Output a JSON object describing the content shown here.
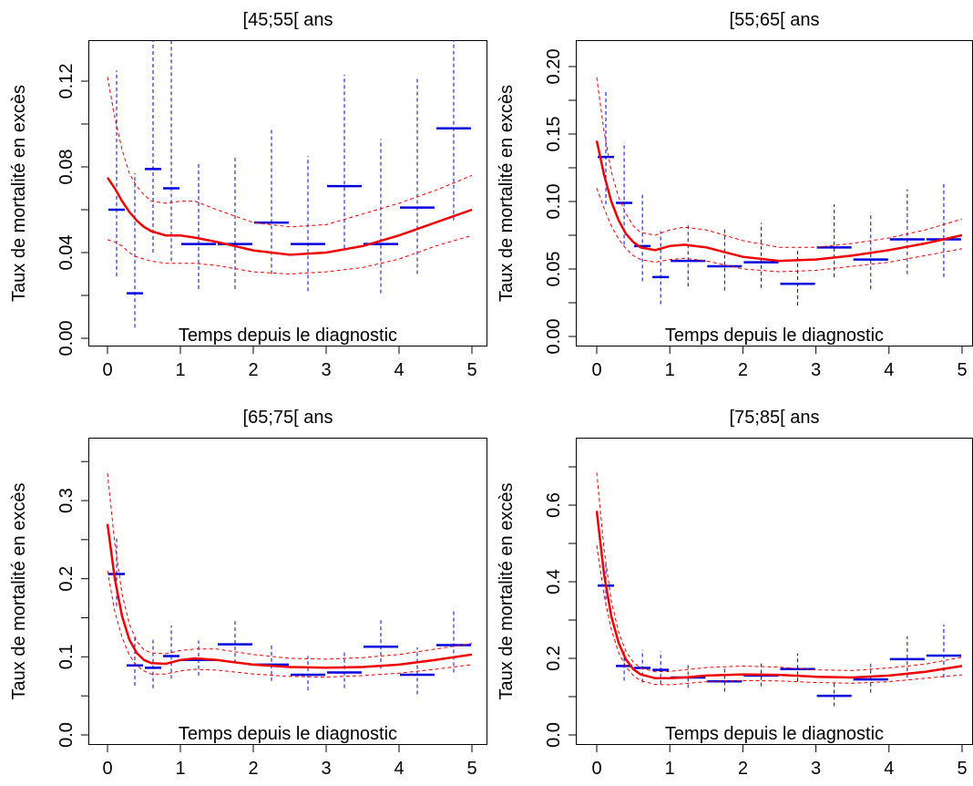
{
  "chart_data": [
    {
      "type": "line",
      "title": "[45;55[ ans",
      "xlabel": "Temps depuis le diagnostic",
      "ylabel": "Taux de mortalité en excès",
      "xlim": [
        0,
        5
      ],
      "ylim": [
        0,
        0.14
      ],
      "xticks": [
        "0",
        "1",
        "2",
        "3",
        "4",
        "5"
      ],
      "yticks": [
        "0.00",
        "0.04",
        "0.08",
        "0.12"
      ],
      "curve": {
        "x": [
          0,
          0.1,
          0.2,
          0.3,
          0.4,
          0.5,
          0.6,
          0.8,
          1.0,
          1.2,
          1.5,
          2.0,
          2.5,
          3.0,
          3.5,
          4.0,
          4.5,
          5.0
        ],
        "y": [
          0.075,
          0.07,
          0.064,
          0.059,
          0.055,
          0.052,
          0.05,
          0.048,
          0.048,
          0.047,
          0.045,
          0.041,
          0.039,
          0.04,
          0.043,
          0.048,
          0.054,
          0.06
        ],
        "lo": [
          0.046,
          0.045,
          0.043,
          0.04,
          0.038,
          0.037,
          0.036,
          0.035,
          0.035,
          0.035,
          0.034,
          0.031,
          0.03,
          0.031,
          0.033,
          0.037,
          0.043,
          0.048
        ],
        "hi": [
          0.122,
          0.103,
          0.088,
          0.077,
          0.071,
          0.067,
          0.064,
          0.063,
          0.064,
          0.064,
          0.06,
          0.054,
          0.052,
          0.053,
          0.058,
          0.063,
          0.069,
          0.076
        ]
      },
      "bins": [
        {
          "x0": 0.0,
          "x1": 0.25,
          "y": 0.06,
          "lo": 0.029,
          "hi": 0.125
        },
        {
          "x0": 0.25,
          "x1": 0.5,
          "y": 0.021,
          "lo": 0.005,
          "hi": 0.077
        },
        {
          "x0": 0.5,
          "x1": 0.75,
          "y": 0.079,
          "lo": 0.04,
          "hi": 0.14
        },
        {
          "x0": 0.75,
          "x1": 1.0,
          "y": 0.07,
          "lo": 0.036,
          "hi": 0.14
        },
        {
          "x0": 1.0,
          "x1": 1.5,
          "y": 0.044,
          "lo": 0.023,
          "hi": 0.082
        },
        {
          "x0": 1.5,
          "x1": 2.0,
          "y": 0.044,
          "lo": 0.023,
          "hi": 0.085
        },
        {
          "x0": 2.0,
          "x1": 2.5,
          "y": 0.054,
          "lo": 0.03,
          "hi": 0.098
        },
        {
          "x0": 2.5,
          "x1": 3.0,
          "y": 0.044,
          "lo": 0.022,
          "hi": 0.085
        },
        {
          "x0": 3.0,
          "x1": 3.5,
          "y": 0.071,
          "lo": 0.042,
          "hi": 0.123
        },
        {
          "x0": 3.5,
          "x1": 4.0,
          "y": 0.044,
          "lo": 0.021,
          "hi": 0.093
        },
        {
          "x0": 4.0,
          "x1": 4.5,
          "y": 0.061,
          "lo": 0.03,
          "hi": 0.122
        },
        {
          "x0": 4.5,
          "x1": 5.0,
          "y": 0.098,
          "lo": 0.055,
          "hi": 0.14
        }
      ]
    },
    {
      "type": "line",
      "title": "[55;65[ ans",
      "xlabel": "Temps depuis le diagnostic",
      "ylabel": "Taux de mortalité en excès",
      "xlim": [
        0,
        5
      ],
      "ylim": [
        0,
        0.22
      ],
      "xticks": [
        "0",
        "1",
        "2",
        "3",
        "4",
        "5"
      ],
      "yticks": [
        "0.00",
        "0.05",
        "0.10",
        "0.15",
        "0.20"
      ],
      "curve": {
        "x": [
          0,
          0.1,
          0.2,
          0.3,
          0.4,
          0.5,
          0.6,
          0.8,
          1.0,
          1.2,
          1.5,
          2.0,
          2.5,
          3.0,
          3.5,
          4.0,
          4.5,
          5.0
        ],
        "y": [
          0.145,
          0.12,
          0.1,
          0.086,
          0.076,
          0.07,
          0.066,
          0.064,
          0.067,
          0.068,
          0.066,
          0.059,
          0.056,
          0.057,
          0.06,
          0.064,
          0.069,
          0.075
        ],
        "lo": [
          0.11,
          0.095,
          0.082,
          0.072,
          0.065,
          0.06,
          0.057,
          0.055,
          0.057,
          0.058,
          0.056,
          0.05,
          0.048,
          0.049,
          0.052,
          0.055,
          0.06,
          0.065
        ],
        "hi": [
          0.192,
          0.152,
          0.122,
          0.103,
          0.091,
          0.082,
          0.077,
          0.075,
          0.079,
          0.081,
          0.079,
          0.071,
          0.066,
          0.066,
          0.069,
          0.073,
          0.079,
          0.087
        ]
      },
      "bins": [
        {
          "x0": 0.0,
          "x1": 0.25,
          "y": 0.133,
          "lo": 0.098,
          "hi": 0.182
        },
        {
          "x0": 0.25,
          "x1": 0.5,
          "y": 0.099,
          "lo": 0.068,
          "hi": 0.144
        },
        {
          "x0": 0.5,
          "x1": 0.75,
          "y": 0.067,
          "lo": 0.041,
          "hi": 0.105
        },
        {
          "x0": 0.75,
          "x1": 1.0,
          "y": 0.044,
          "lo": 0.024,
          "hi": 0.078
        },
        {
          "x0": 1.0,
          "x1": 1.5,
          "y": 0.056,
          "lo": 0.037,
          "hi": 0.083
        },
        {
          "x0": 1.5,
          "x1": 2.0,
          "y": 0.052,
          "lo": 0.034,
          "hi": 0.08
        },
        {
          "x0": 2.0,
          "x1": 2.5,
          "y": 0.055,
          "lo": 0.036,
          "hi": 0.084
        },
        {
          "x0": 2.5,
          "x1": 3.0,
          "y": 0.039,
          "lo": 0.023,
          "hi": 0.065
        },
        {
          "x0": 3.0,
          "x1": 3.5,
          "y": 0.066,
          "lo": 0.044,
          "hi": 0.098
        },
        {
          "x0": 3.5,
          "x1": 4.0,
          "y": 0.057,
          "lo": 0.035,
          "hi": 0.092
        },
        {
          "x0": 4.0,
          "x1": 4.5,
          "y": 0.072,
          "lo": 0.046,
          "hi": 0.109
        },
        {
          "x0": 4.5,
          "x1": 5.0,
          "y": 0.072,
          "lo": 0.044,
          "hi": 0.114
        }
      ]
    },
    {
      "type": "line",
      "title": "[65;75[ ans",
      "xlabel": "Temps depuis le diagnostic",
      "ylabel": "Taux de mortalité en excès",
      "xlim": [
        0,
        5
      ],
      "ylim": [
        0,
        0.35
      ],
      "xticks": [
        "0",
        "1",
        "2",
        "3",
        "4",
        "5"
      ],
      "yticks": [
        "0.0",
        "0.1",
        "0.2",
        "0.3"
      ],
      "curve": {
        "x": [
          0,
          0.1,
          0.2,
          0.3,
          0.4,
          0.5,
          0.6,
          0.8,
          1.0,
          1.2,
          1.5,
          2.0,
          2.5,
          3.0,
          3.5,
          4.0,
          4.5,
          5.0
        ],
        "y": [
          0.27,
          0.2,
          0.152,
          0.122,
          0.105,
          0.096,
          0.092,
          0.091,
          0.096,
          0.098,
          0.096,
          0.09,
          0.087,
          0.086,
          0.087,
          0.09,
          0.096,
          0.103
        ],
        "lo": [
          0.21,
          0.158,
          0.125,
          0.102,
          0.089,
          0.082,
          0.078,
          0.078,
          0.082,
          0.084,
          0.083,
          0.078,
          0.075,
          0.074,
          0.076,
          0.079,
          0.084,
          0.09
        ],
        "hi": [
          0.335,
          0.245,
          0.18,
          0.142,
          0.12,
          0.109,
          0.105,
          0.104,
          0.108,
          0.11,
          0.11,
          0.103,
          0.098,
          0.097,
          0.099,
          0.103,
          0.11,
          0.117
        ]
      },
      "bins": [
        {
          "x0": 0.0,
          "x1": 0.25,
          "y": 0.206,
          "lo": 0.165,
          "hi": 0.255
        },
        {
          "x0": 0.25,
          "x1": 0.5,
          "y": 0.089,
          "lo": 0.063,
          "hi": 0.125
        },
        {
          "x0": 0.5,
          "x1": 0.75,
          "y": 0.086,
          "lo": 0.06,
          "hi": 0.122
        },
        {
          "x0": 0.75,
          "x1": 1.0,
          "y": 0.101,
          "lo": 0.072,
          "hi": 0.14
        },
        {
          "x0": 1.0,
          "x1": 1.5,
          "y": 0.096,
          "lo": 0.076,
          "hi": 0.121
        },
        {
          "x0": 1.5,
          "x1": 2.0,
          "y": 0.116,
          "lo": 0.092,
          "hi": 0.146
        },
        {
          "x0": 2.0,
          "x1": 2.5,
          "y": 0.09,
          "lo": 0.069,
          "hi": 0.115
        },
        {
          "x0": 2.5,
          "x1": 3.0,
          "y": 0.077,
          "lo": 0.057,
          "hi": 0.101
        },
        {
          "x0": 3.0,
          "x1": 3.5,
          "y": 0.08,
          "lo": 0.06,
          "hi": 0.106
        },
        {
          "x0": 3.5,
          "x1": 4.0,
          "y": 0.113,
          "lo": 0.085,
          "hi": 0.15
        },
        {
          "x0": 4.0,
          "x1": 4.5,
          "y": 0.077,
          "lo": 0.052,
          "hi": 0.112
        },
        {
          "x0": 4.5,
          "x1": 5.0,
          "y": 0.115,
          "lo": 0.08,
          "hi": 0.16
        }
      ]
    },
    {
      "type": "line",
      "title": "[75;85[ ans",
      "xlabel": "Temps depuis le diagnostic",
      "ylabel": "Taux de mortalité en excès",
      "xlim": [
        0,
        5
      ],
      "ylim": [
        0,
        0.7
      ],
      "xticks": [
        "0",
        "1",
        "2",
        "3",
        "4",
        "5"
      ],
      "yticks": [
        "0.0",
        "0.2",
        "0.4",
        "0.6"
      ],
      "curve": {
        "x": [
          0,
          0.1,
          0.2,
          0.3,
          0.4,
          0.5,
          0.6,
          0.8,
          1.0,
          1.2,
          1.5,
          2.0,
          2.5,
          3.0,
          3.5,
          4.0,
          4.5,
          5.0
        ],
        "y": [
          0.585,
          0.42,
          0.31,
          0.24,
          0.197,
          0.172,
          0.158,
          0.148,
          0.148,
          0.15,
          0.155,
          0.158,
          0.157,
          0.152,
          0.15,
          0.155,
          0.165,
          0.18
        ],
        "lo": [
          0.495,
          0.365,
          0.275,
          0.215,
          0.178,
          0.155,
          0.142,
          0.132,
          0.131,
          0.134,
          0.139,
          0.142,
          0.141,
          0.137,
          0.135,
          0.139,
          0.148,
          0.157
        ],
        "hi": [
          0.685,
          0.485,
          0.35,
          0.268,
          0.218,
          0.19,
          0.175,
          0.165,
          0.166,
          0.17,
          0.176,
          0.18,
          0.177,
          0.17,
          0.168,
          0.175,
          0.185,
          0.203
        ]
      },
      "bins": [
        {
          "x0": 0.0,
          "x1": 0.25,
          "y": 0.39,
          "lo": 0.337,
          "hi": 0.45
        },
        {
          "x0": 0.25,
          "x1": 0.5,
          "y": 0.18,
          "lo": 0.142,
          "hi": 0.225
        },
        {
          "x0": 0.5,
          "x1": 0.75,
          "y": 0.175,
          "lo": 0.137,
          "hi": 0.222
        },
        {
          "x0": 0.75,
          "x1": 1.0,
          "y": 0.17,
          "lo": 0.133,
          "hi": 0.218
        },
        {
          "x0": 1.0,
          "x1": 1.5,
          "y": 0.15,
          "lo": 0.123,
          "hi": 0.183
        },
        {
          "x0": 1.5,
          "x1": 2.0,
          "y": 0.14,
          "lo": 0.113,
          "hi": 0.173
        },
        {
          "x0": 2.0,
          "x1": 2.5,
          "y": 0.155,
          "lo": 0.127,
          "hi": 0.19
        },
        {
          "x0": 2.5,
          "x1": 3.0,
          "y": 0.172,
          "lo": 0.14,
          "hi": 0.213
        },
        {
          "x0": 3.0,
          "x1": 3.5,
          "y": 0.102,
          "lo": 0.075,
          "hi": 0.137
        },
        {
          "x0": 3.5,
          "x1": 4.0,
          "y": 0.145,
          "lo": 0.11,
          "hi": 0.19
        },
        {
          "x0": 4.0,
          "x1": 4.5,
          "y": 0.198,
          "lo": 0.15,
          "hi": 0.258
        },
        {
          "x0": 4.5,
          "x1": 5.0,
          "y": 0.207,
          "lo": 0.15,
          "hi": 0.288
        }
      ]
    }
  ],
  "colors": {
    "curve": "#ee0000",
    "bins": "#0000dd",
    "axis": "#000000"
  }
}
